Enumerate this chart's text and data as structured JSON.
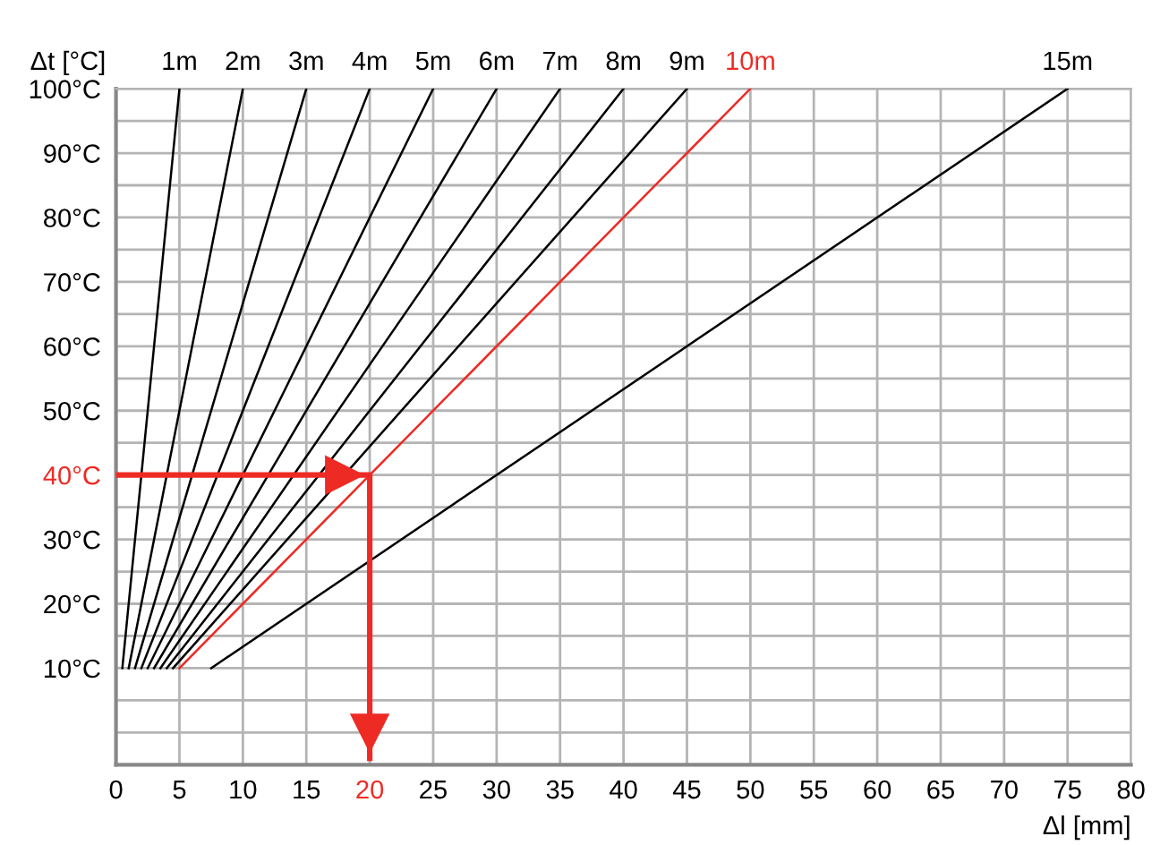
{
  "chart_data": {
    "type": "line",
    "xlabel": "Δl [mm]",
    "ylabel": "Δt [°C]",
    "xlim": [
      0,
      80
    ],
    "xticks": [
      0,
      5,
      10,
      15,
      20,
      25,
      30,
      35,
      40,
      45,
      50,
      55,
      60,
      65,
      70,
      75,
      80
    ],
    "ylim": [
      -5,
      100
    ],
    "yticks": [
      {
        "value": 0,
        "label": null
      },
      {
        "value": 5,
        "label": null
      },
      {
        "value": 10,
        "label": "10°C"
      },
      {
        "value": 15,
        "label": null
      },
      {
        "value": 20,
        "label": "20°C"
      },
      {
        "value": 25,
        "label": null
      },
      {
        "value": 30,
        "label": "30°C"
      },
      {
        "value": 35,
        "label": null
      },
      {
        "value": 40,
        "label": "40°C"
      },
      {
        "value": 45,
        "label": null
      },
      {
        "value": 50,
        "label": "50°C"
      },
      {
        "value": 55,
        "label": null
      },
      {
        "value": 60,
        "label": "60°C"
      },
      {
        "value": 65,
        "label": null
      },
      {
        "value": 70,
        "label": "70°C"
      },
      {
        "value": 75,
        "label": null
      },
      {
        "value": 80,
        "label": "80°C"
      },
      {
        "value": 85,
        "label": null
      },
      {
        "value": 90,
        "label": "90°C"
      },
      {
        "value": 95,
        "label": null
      },
      {
        "value": 100,
        "label": "100°C"
      }
    ],
    "grid": true,
    "legend": false,
    "marker": "none",
    "line_style": "solid",
    "series": [
      {
        "name": "1m",
        "color": "#000000",
        "x": [
          0.5,
          5
        ],
        "values": [
          10,
          100
        ]
      },
      {
        "name": "2m",
        "color": "#000000",
        "x": [
          1,
          10
        ],
        "values": [
          10,
          100
        ]
      },
      {
        "name": "3m",
        "color": "#000000",
        "x": [
          1.5,
          15
        ],
        "values": [
          10,
          100
        ]
      },
      {
        "name": "4m",
        "color": "#000000",
        "x": [
          2,
          20
        ],
        "values": [
          10,
          100
        ]
      },
      {
        "name": "5m",
        "color": "#000000",
        "x": [
          2.5,
          25
        ],
        "values": [
          10,
          100
        ]
      },
      {
        "name": "6m",
        "color": "#000000",
        "x": [
          3,
          30
        ],
        "values": [
          10,
          100
        ]
      },
      {
        "name": "7m",
        "color": "#000000",
        "x": [
          3.5,
          35
        ],
        "values": [
          10,
          100
        ]
      },
      {
        "name": "8m",
        "color": "#000000",
        "x": [
          4,
          40
        ],
        "values": [
          10,
          100
        ]
      },
      {
        "name": "9m",
        "color": "#000000",
        "x": [
          4.5,
          45
        ],
        "values": [
          10,
          100
        ]
      },
      {
        "name": "10m",
        "color": "#ee2a24",
        "x": [
          5,
          50
        ],
        "values": [
          10,
          100
        ]
      },
      {
        "name": "15m",
        "color": "#000000",
        "x": [
          7.5,
          75
        ],
        "values": [
          10,
          100
        ]
      },
      {
        "color": "#ee2a24",
        "x": [
          0,
          20,
          20
        ],
        "values": [
          40,
          40,
          -4
        ]
      }
    ]
  }
}
